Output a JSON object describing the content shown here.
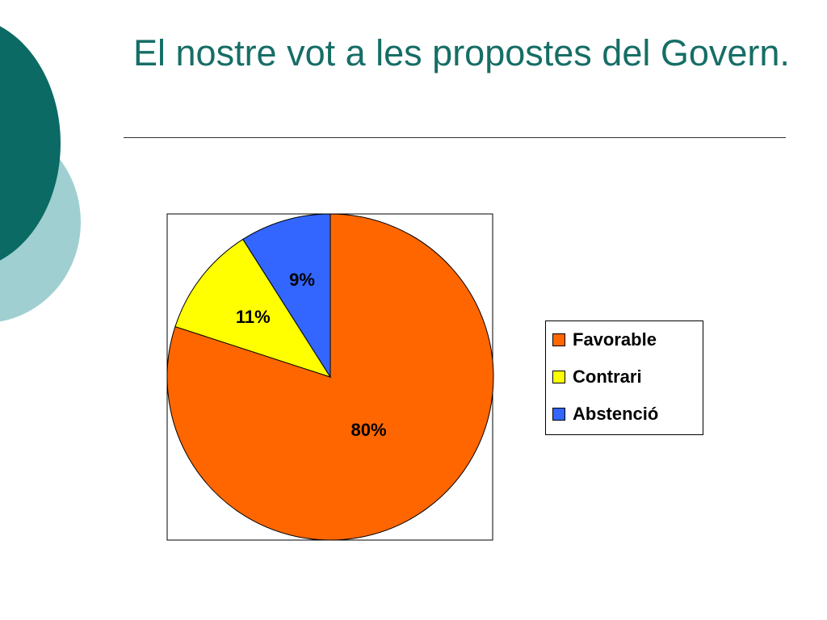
{
  "slide": {
    "title": "El nostre vot a les propostes del Govern."
  },
  "chart_data": {
    "type": "pie",
    "title": "",
    "categories": [
      "Favorable",
      "Contrari",
      "Abstenció"
    ],
    "values": [
      80,
      11,
      9
    ],
    "labels": [
      "80%",
      "11%",
      "9%"
    ],
    "colors": [
      "#ff6600",
      "#ffff00",
      "#3366ff"
    ],
    "legend": "right",
    "start": "top",
    "direction": "clockwise"
  }
}
